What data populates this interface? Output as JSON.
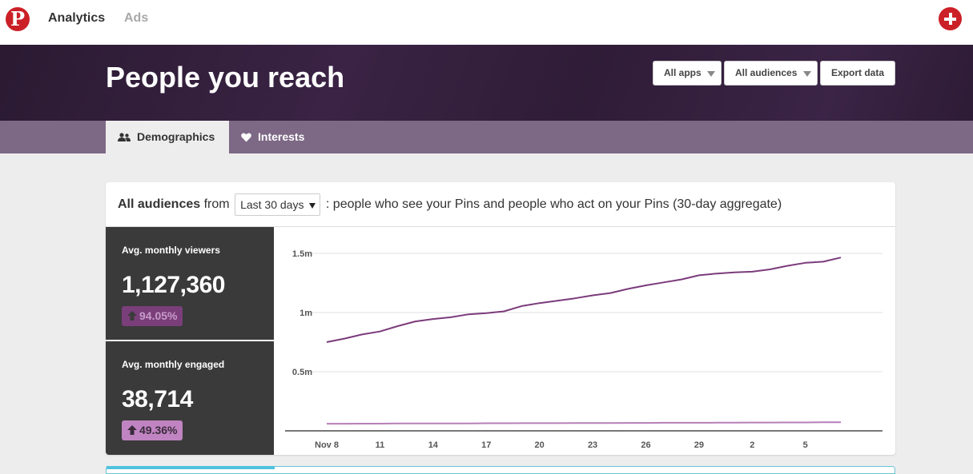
{
  "nav": {
    "logo": "P",
    "analytics": "Analytics",
    "ads": "Ads"
  },
  "hero": {
    "title": "People you reach",
    "apps_filter": "All apps",
    "audiences_filter": "All audiences",
    "export": "Export data"
  },
  "tabs": {
    "demographics": "Demographics",
    "interests": "Interests"
  },
  "card": {
    "audience": "All audiences",
    "from": "from",
    "range": "Last 30 days",
    "description": ": people who see your Pins and people who act on your Pins (30-day aggregate)"
  },
  "stats": {
    "viewers": {
      "label": "Avg. monthly viewers",
      "value": "1,127,360",
      "change": "94.05%"
    },
    "engaged": {
      "label": "Avg. monthly engaged",
      "value": "38,714",
      "change": "49.36%"
    }
  },
  "colors": {
    "brand": "#cb2027",
    "series_viewers": "#7b3b7b",
    "series_engaged": "#b67fb8"
  },
  "chart_data": {
    "type": "line",
    "x": [
      "Nov 8",
      "",
      "",
      "11",
      "",
      "",
      "14",
      "",
      "",
      "17",
      "",
      "",
      "20",
      "",
      "",
      "23",
      "",
      "",
      "26",
      "",
      "",
      "29",
      "",
      "",
      "2",
      "",
      "",
      "5",
      "",
      ""
    ],
    "x_ticks": [
      "Nov 8",
      "11",
      "14",
      "17",
      "20",
      "23",
      "26",
      "29",
      "2",
      "5"
    ],
    "y_ticks": [
      "0.5m",
      "1m",
      "1.5m"
    ],
    "ylim": [
      0,
      1600000
    ],
    "series": [
      {
        "values": [
          750000,
          780000,
          815000,
          840000,
          885000,
          925000,
          945000,
          960000,
          985000,
          995000,
          1010000,
          1055000,
          1080000,
          1100000,
          1120000,
          1145000,
          1165000,
          1200000,
          1230000,
          1255000,
          1280000,
          1315000,
          1330000,
          1340000,
          1345000,
          1365000,
          1395000,
          1420000,
          1430000,
          1465000
        ]
      },
      {
        "values": [
          60000,
          60000,
          61000,
          61000,
          62000,
          62000,
          63000,
          63000,
          63000,
          64000,
          64000,
          65000,
          65000,
          65000,
          66000,
          66000,
          66000,
          67000,
          67000,
          68000,
          68000,
          68000,
          69000,
          69000,
          70000,
          70000,
          71000,
          71000,
          72000,
          72000
        ]
      }
    ]
  }
}
